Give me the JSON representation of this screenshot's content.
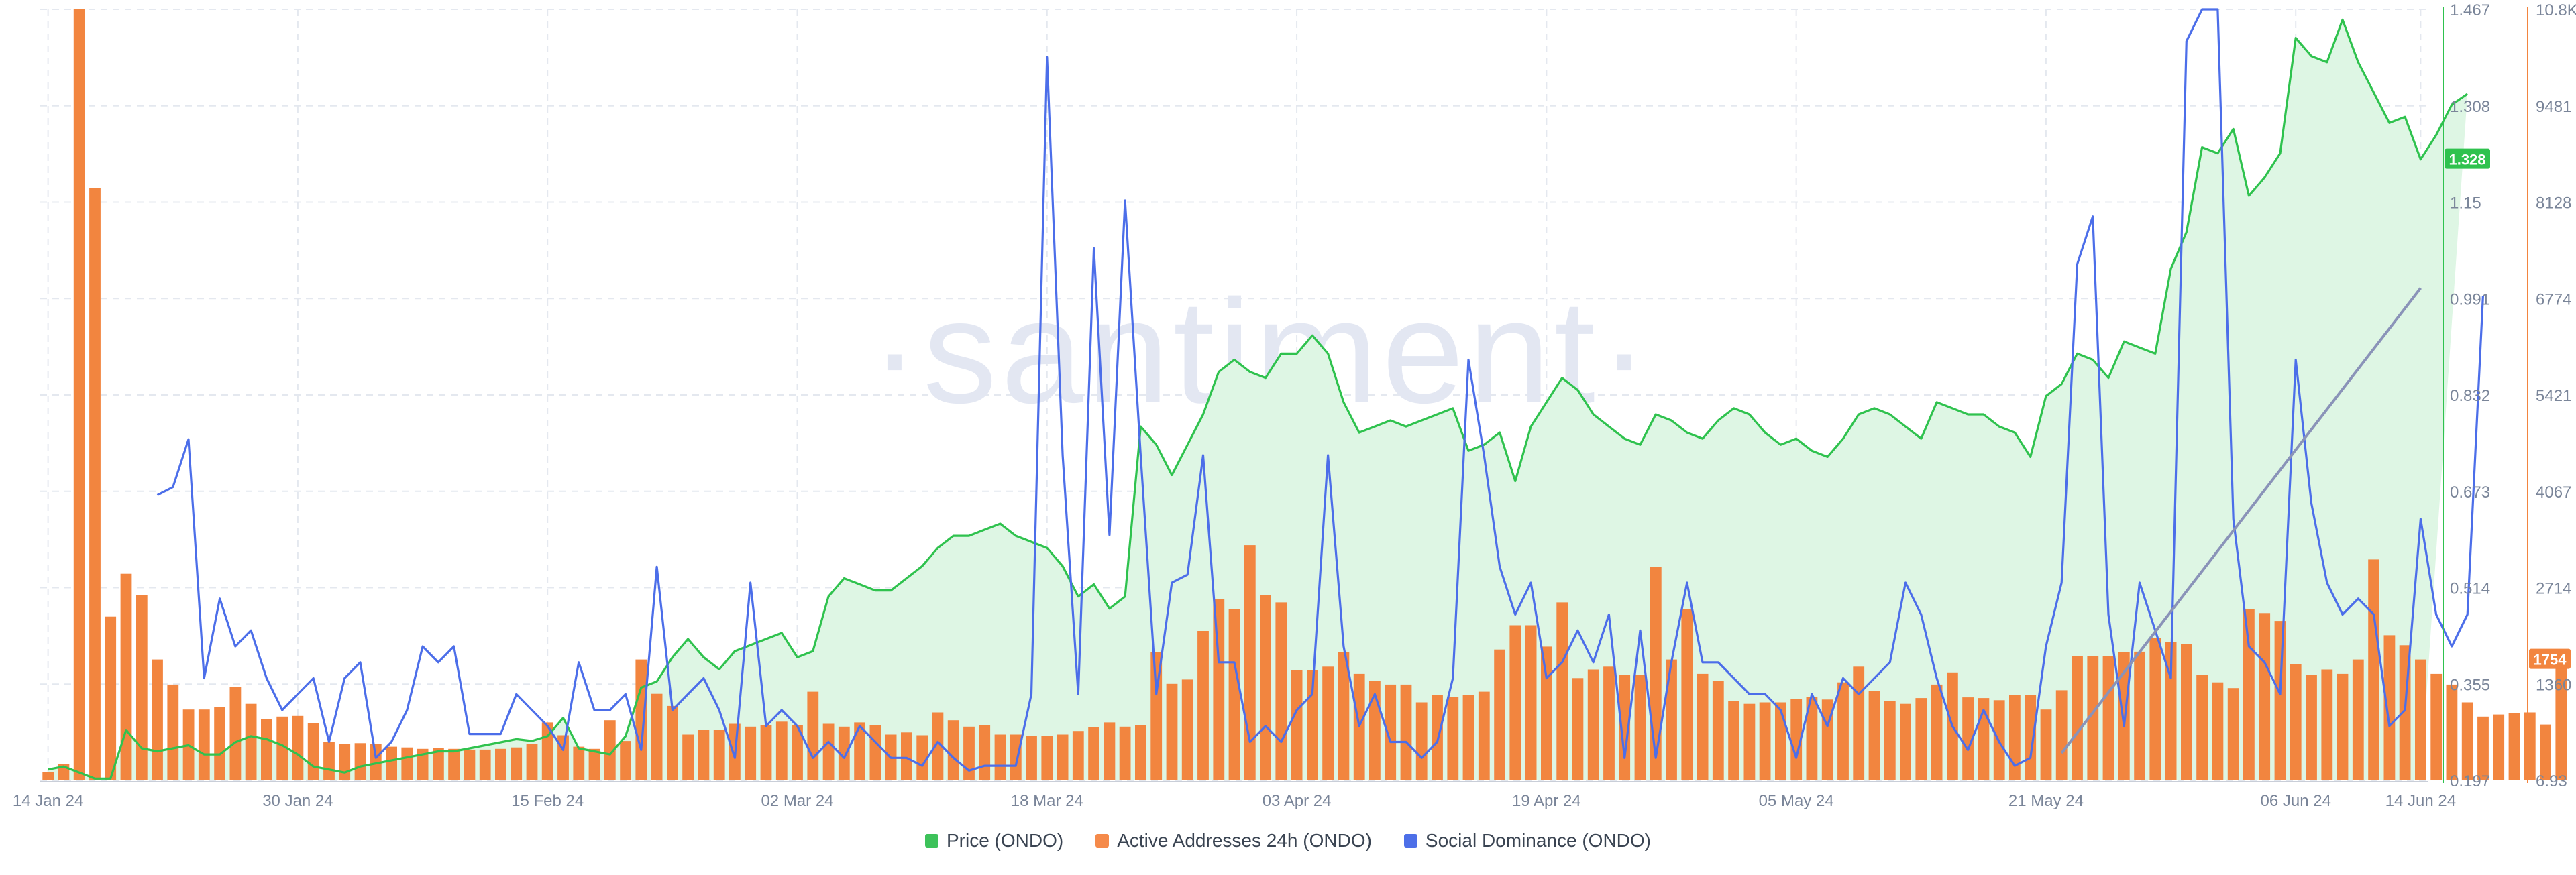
{
  "watermark": "·santiment·",
  "chart_data": {
    "type": "bar",
    "x_ticks": [
      "14 Jan 24",
      "30 Jan 24",
      "15 Feb 24",
      "02 Mar 24",
      "18 Mar 24",
      "03 Apr 24",
      "19 Apr 24",
      "05 May 24",
      "21 May 24",
      "06 Jun 24",
      "14 Jun 24"
    ],
    "y_axes": {
      "price": {
        "ticks": [
          "1.467",
          "1.308",
          "1.15",
          "0.991",
          "0.832",
          "0.673",
          "0.514",
          "0.355",
          "0.197"
        ],
        "range": [
          0.197,
          1.467
        ],
        "last_label": "1.328",
        "color": "#2bb24c"
      },
      "active_addresses": {
        "ticks": [
          "10.8K",
          "9481",
          "8128",
          "6774",
          "5421",
          "4067",
          "2714",
          "1360",
          "6.93"
        ],
        "range": [
          6.93,
          10800
        ],
        "last_label": "1754",
        "color": "#f07c36"
      }
    },
    "legend": [
      {
        "label": "Price (ONDO)",
        "color": "#3dc25a"
      },
      {
        "label": "Active Addresses 24h (ONDO)",
        "color": "#f58a4a"
      },
      {
        "label": "Social Dominance (ONDO)",
        "color": "#4d6fe8"
      }
    ],
    "days": 153,
    "series": [
      {
        "name": "Active Addresses 24h (ONDO)",
        "values": [
          120,
          240,
          10800,
          8300,
          2300,
          2900,
          2600,
          1700,
          1350,
          1000,
          1000,
          1030,
          1320,
          1080,
          870,
          900,
          910,
          810,
          550,
          520,
          530,
          520,
          480,
          470,
          450,
          460,
          450,
          440,
          440,
          450,
          470,
          520,
          820,
          640,
          480,
          450,
          850,
          560,
          1700,
          1220,
          1050,
          650,
          720,
          720,
          800,
          760,
          780,
          830,
          780,
          1250,
          800,
          760,
          820,
          780,
          650,
          680,
          640,
          960,
          850,
          760,
          780,
          650,
          650,
          630,
          630,
          650,
          700,
          750,
          820,
          760,
          780,
          1800,
          1360,
          1420,
          2100,
          2550,
          2400,
          3300,
          2600,
          2500,
          1550,
          1550,
          1600,
          1800,
          1500,
          1400,
          1350,
          1350,
          1100,
          1200,
          1180,
          1200,
          1250,
          1840,
          2180,
          2180,
          1880,
          2500,
          1440,
          1560,
          1600,
          1480,
          1480,
          3000,
          1700,
          2400,
          1500,
          1400,
          1120,
          1080,
          1100,
          1100,
          1150,
          1180,
          1140,
          1380,
          1600,
          1260,
          1120,
          1080,
          1160,
          1350,
          1520,
          1170,
          1160,
          1130,
          1200,
          1200,
          1000,
          1270,
          1750,
          1750,
          1750,
          1800,
          1810,
          2000,
          1950,
          1920,
          1480,
          1380,
          1300,
          2400,
          2350,
          2240,
          1640,
          1480,
          1560,
          1500,
          1700,
          3100,
          2040,
          1900,
          1700,
          1500,
          1350,
          1100,
          900,
          930,
          950,
          960,
          790,
          1754
        ]
      },
      {
        "name": "Price (ONDO)",
        "values": [
          0.215,
          0.22,
          0.21,
          0.2,
          0.2,
          0.28,
          0.25,
          0.245,
          0.25,
          0.255,
          0.24,
          0.24,
          0.26,
          0.27,
          0.265,
          0.255,
          0.24,
          0.22,
          0.215,
          0.21,
          0.22,
          0.225,
          0.23,
          0.235,
          0.24,
          0.245,
          0.245,
          0.25,
          0.255,
          0.26,
          0.265,
          0.262,
          0.27,
          0.3,
          0.25,
          0.245,
          0.24,
          0.27,
          0.35,
          0.36,
          0.4,
          0.43,
          0.4,
          0.38,
          0.41,
          0.42,
          0.43,
          0.44,
          0.4,
          0.41,
          0.5,
          0.53,
          0.52,
          0.51,
          0.51,
          0.53,
          0.55,
          0.58,
          0.6,
          0.6,
          0.61,
          0.62,
          0.6,
          0.59,
          0.58,
          0.55,
          0.5,
          0.52,
          0.48,
          0.5,
          0.78,
          0.75,
          0.7,
          0.75,
          0.8,
          0.87,
          0.89,
          0.87,
          0.86,
          0.9,
          0.9,
          0.93,
          0.9,
          0.82,
          0.77,
          0.78,
          0.79,
          0.78,
          0.79,
          0.8,
          0.81,
          0.74,
          0.75,
          0.77,
          0.69,
          0.78,
          0.82,
          0.86,
          0.84,
          0.8,
          0.78,
          0.76,
          0.75,
          0.8,
          0.79,
          0.77,
          0.76,
          0.79,
          0.81,
          0.8,
          0.77,
          0.75,
          0.76,
          0.74,
          0.73,
          0.76,
          0.8,
          0.81,
          0.8,
          0.78,
          0.76,
          0.82,
          0.81,
          0.8,
          0.8,
          0.78,
          0.77,
          0.73,
          0.83,
          0.85,
          0.9,
          0.89,
          0.86,
          0.92,
          0.91,
          0.9,
          1.04,
          1.1,
          1.24,
          1.23,
          1.27,
          1.16,
          1.19,
          1.23,
          1.42,
          1.39,
          1.38,
          1.45,
          1.38,
          1.33,
          1.28,
          1.29,
          1.22,
          1.26,
          1.31,
          1.328
        ]
      },
      {
        "name": "Social Dominance (ONDO)",
        "values": [
          null,
          null,
          null,
          null,
          null,
          null,
          null,
          17.5,
          18,
          21,
          6,
          11,
          8,
          9,
          6,
          4,
          5,
          6,
          2,
          6,
          7,
          1,
          2,
          4,
          8,
          7,
          8,
          2.5,
          2.5,
          2.5,
          5,
          4,
          3,
          1.5,
          7,
          4,
          4,
          5,
          1.5,
          13,
          4,
          5,
          6,
          4,
          1,
          12,
          3,
          4,
          3,
          1,
          2,
          1,
          3,
          2,
          1,
          1,
          0.5,
          2,
          1,
          0.2,
          0.5,
          0.5,
          0.5,
          5,
          45,
          20,
          5,
          33,
          15,
          36,
          20,
          5,
          12,
          12.5,
          20,
          7,
          7,
          2,
          3,
          2,
          4,
          5,
          20,
          8,
          3,
          5,
          2,
          2,
          1,
          2,
          6,
          26,
          20,
          13,
          10,
          12,
          6,
          7,
          9,
          7,
          10,
          1,
          9,
          1,
          7,
          12,
          7,
          7,
          6,
          5,
          5,
          4,
          1,
          5,
          3,
          6,
          5,
          6,
          7,
          12,
          10,
          6,
          3,
          1.5,
          4,
          2,
          0.5,
          1,
          8,
          12,
          32,
          35,
          10,
          3,
          12,
          9,
          6,
          46,
          48,
          48,
          16,
          8,
          7,
          5,
          26,
          17,
          12,
          10,
          11,
          10,
          3,
          4,
          16,
          10,
          8,
          10,
          30
        ]
      }
    ],
    "annotations": [
      "trend line on Social Dominance"
    ],
    "grid": true
  }
}
